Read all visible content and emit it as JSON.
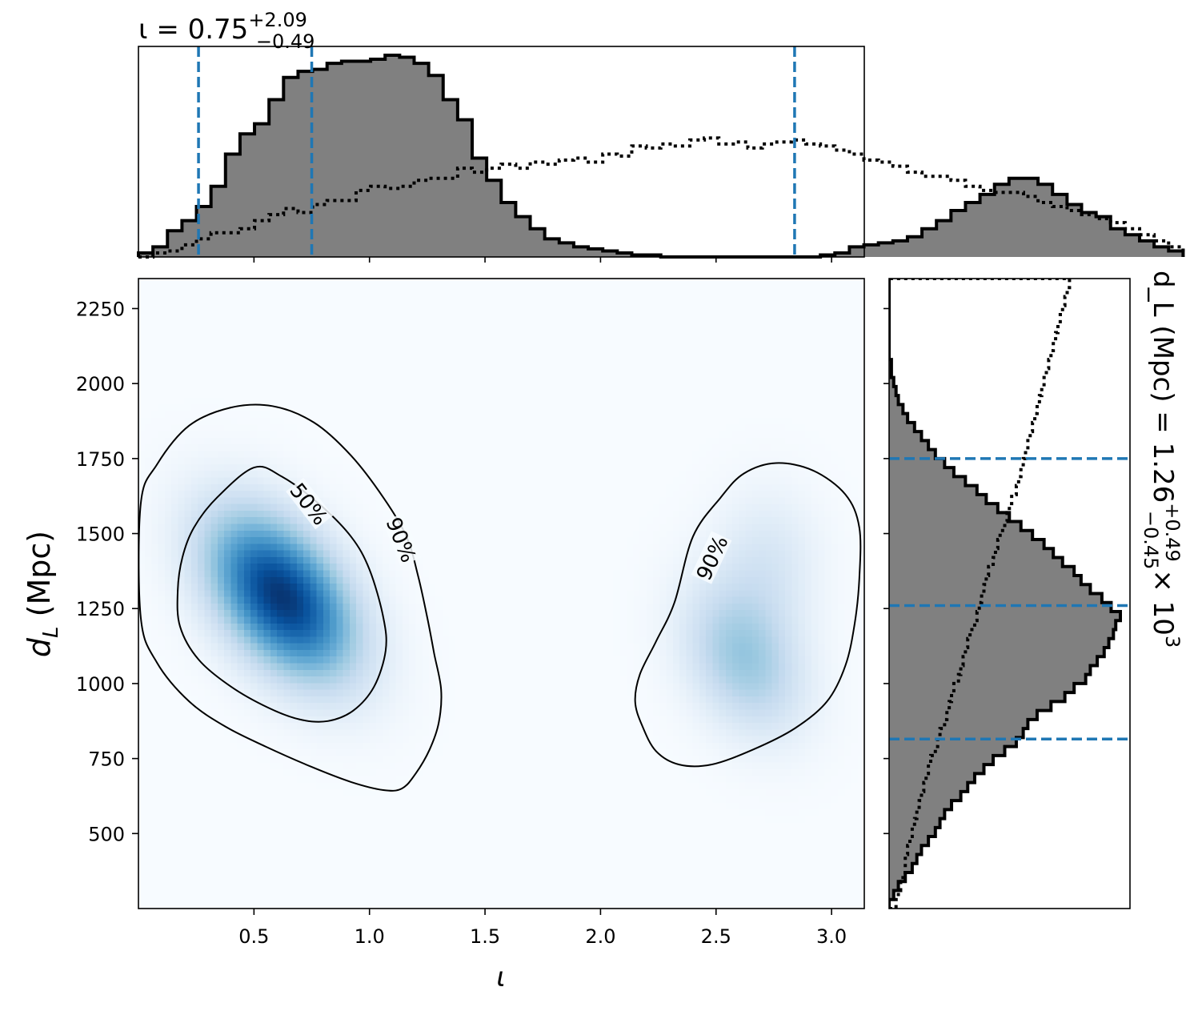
{
  "chart_data": {
    "type": "corner",
    "panels": {
      "top_hist": {
        "type": "histogram",
        "parameter": "ι",
        "title": {
          "prefix": "ι = 0.75",
          "sup": "+2.09",
          "sub": "−0.49"
        },
        "xlim": [
          0.0,
          3.1416
        ],
        "bin_width": 0.0628,
        "posterior": [
          0.02,
          0.05,
          0.13,
          0.18,
          0.25,
          0.35,
          0.51,
          0.61,
          0.66,
          0.78,
          0.89,
          0.92,
          0.93,
          0.96,
          0.97,
          0.97,
          0.98,
          1.0,
          0.99,
          0.96,
          0.9,
          0.78,
          0.68,
          0.49,
          0.38,
          0.27,
          0.2,
          0.14,
          0.09,
          0.07,
          0.05,
          0.04,
          0.03,
          0.02,
          0.01,
          0.01,
          0.0,
          0.0,
          0.0,
          0.0,
          0.0,
          0.0,
          0.0,
          0.0,
          0.0,
          0.0,
          0.0,
          0.01,
          0.02,
          0.05,
          0.06,
          0.07,
          0.08,
          0.1,
          0.14,
          0.18,
          0.23,
          0.27,
          0.31,
          0.36,
          0.39,
          0.39,
          0.36,
          0.31,
          0.26,
          0.22,
          0.2,
          0.14,
          0.11,
          0.08,
          0.05,
          0.03
        ],
        "prior": [
          0.0,
          0.02,
          0.03,
          0.06,
          0.09,
          0.12,
          0.12,
          0.14,
          0.18,
          0.21,
          0.24,
          0.22,
          0.26,
          0.28,
          0.28,
          0.33,
          0.35,
          0.34,
          0.35,
          0.38,
          0.39,
          0.39,
          0.44,
          0.42,
          0.44,
          0.46,
          0.44,
          0.47,
          0.46,
          0.48,
          0.49,
          0.47,
          0.51,
          0.5,
          0.55,
          0.54,
          0.56,
          0.55,
          0.58,
          0.59,
          0.56,
          0.57,
          0.54,
          0.56,
          0.57,
          0.58,
          0.56,
          0.55,
          0.53,
          0.51,
          0.48,
          0.47,
          0.45,
          0.42,
          0.4,
          0.4,
          0.38,
          0.35,
          0.33,
          0.32,
          0.32,
          0.3,
          0.27,
          0.25,
          0.23,
          0.21,
          0.19,
          0.17,
          0.14,
          0.11,
          0.08,
          0.05
        ],
        "interval_lines": [
          0.26,
          0.75,
          2.84
        ]
      },
      "main": {
        "type": "heatmap",
        "xlabel": "ι",
        "ylabel": "d_L (Mpc)",
        "xlim": [
          0.0,
          3.1416
        ],
        "ylim": [
          250,
          2350
        ],
        "xticks": [
          "0.5",
          "1.0",
          "1.5",
          "2.0",
          "2.5",
          "3.0"
        ],
        "xtick_values": [
          0.5,
          1.0,
          1.5,
          2.0,
          2.5,
          3.0
        ],
        "yticks": [
          "500",
          "750",
          "1000",
          "1250",
          "1500",
          "1750",
          "2000",
          "2250"
        ],
        "ytick_values": [
          500,
          750,
          1000,
          1250,
          1500,
          1750,
          2000,
          2250
        ],
        "colormap": [
          "#f7fbff",
          "#deebf7",
          "#c6dbef",
          "#9ecae1",
          "#6baed6",
          "#4292c6",
          "#2171b5",
          "#08519c",
          "#08306b"
        ],
        "density_peaks": [
          {
            "x": 0.62,
            "y": 1290,
            "sx": 0.22,
            "sy": 190,
            "rho": -0.45,
            "w": 1.0
          },
          {
            "x": 2.62,
            "y": 1080,
            "sx": 0.18,
            "sy": 170,
            "rho": -0.3,
            "w": 0.38
          },
          {
            "x": 2.72,
            "y": 1400,
            "sx": 0.16,
            "sy": 170,
            "rho": 0.0,
            "w": 0.16
          }
        ],
        "contours": [
          {
            "label": "50%",
            "points": [
              [
                0.24,
                1520
              ],
              [
                0.34,
                1620
              ],
              [
                0.5,
                1720
              ],
              [
                0.62,
                1690
              ],
              [
                0.78,
                1600
              ],
              [
                0.92,
                1490
              ],
              [
                1.0,
                1380
              ],
              [
                1.06,
                1220
              ],
              [
                1.07,
                1110
              ],
              [
                1.02,
                990
              ],
              [
                0.93,
                910
              ],
              [
                0.82,
                875
              ],
              [
                0.7,
                880
              ],
              [
                0.56,
                920
              ],
              [
                0.4,
                990
              ],
              [
                0.26,
                1080
              ],
              [
                0.18,
                1190
              ],
              [
                0.17,
                1310
              ],
              [
                0.19,
                1420
              ]
            ]
          },
          {
            "label": "90%",
            "points": [
              [
                0.01,
                1600
              ],
              [
                0.08,
                1730
              ],
              [
                0.22,
                1860
              ],
              [
                0.4,
                1920
              ],
              [
                0.58,
                1925
              ],
              [
                0.76,
                1870
              ],
              [
                0.92,
                1760
              ],
              [
                1.06,
                1620
              ],
              [
                1.16,
                1490
              ],
              [
                1.21,
                1360
              ],
              [
                1.25,
                1220
              ],
              [
                1.28,
                1100
              ],
              [
                1.31,
                980
              ],
              [
                1.3,
                870
              ],
              [
                1.26,
                780
              ],
              [
                1.2,
                700
              ],
              [
                1.14,
                650
              ],
              [
                1.06,
                645
              ],
              [
                0.92,
                672
              ],
              [
                0.75,
                722
              ],
              [
                0.55,
                790
              ],
              [
                0.38,
                855
              ],
              [
                0.22,
                940
              ],
              [
                0.08,
                1070
              ],
              [
                0.01,
                1220
              ]
            ]
          },
          {
            "label": "90%",
            "points": [
              [
                2.4,
                1490
              ],
              [
                2.52,
                1620
              ],
              [
                2.62,
                1700
              ],
              [
                2.76,
                1735
              ],
              [
                2.92,
                1710
              ],
              [
                3.06,
                1630
              ],
              [
                3.12,
                1520
              ],
              [
                3.12,
                1350
              ],
              [
                3.1,
                1200
              ],
              [
                3.06,
                1060
              ],
              [
                2.98,
                940
              ],
              [
                2.84,
                850
              ],
              [
                2.66,
                780
              ],
              [
                2.48,
                730
              ],
              [
                2.34,
                730
              ],
              [
                2.24,
                775
              ],
              [
                2.18,
                860
              ],
              [
                2.15,
                940
              ],
              [
                2.17,
                1030
              ],
              [
                2.24,
                1140
              ],
              [
                2.32,
                1270
              ]
            ]
          }
        ],
        "contour_labels": [
          {
            "text": "50%",
            "x": 0.74,
            "y": 1600,
            "angle": 52
          },
          {
            "text": "90%",
            "x": 1.14,
            "y": 1480,
            "angle": 68
          },
          {
            "text": "90%",
            "x": 2.48,
            "y": 1420,
            "angle": -65
          }
        ]
      },
      "right_hist": {
        "type": "histogram",
        "orientation": "horizontal",
        "parameter": "d_L",
        "title": {
          "prefix": "d_L (Mpc) = 1.26",
          "sup": "+0.49",
          "sub": "−0.45",
          "suffix": "× 10",
          "exp": "3"
        },
        "ylim": [
          250,
          2350
        ],
        "bin_edges_start": 250,
        "bin_width": 30,
        "posterior": [
          0.0,
          0.02,
          0.04,
          0.07,
          0.1,
          0.12,
          0.14,
          0.17,
          0.2,
          0.22,
          0.24,
          0.27,
          0.31,
          0.34,
          0.37,
          0.41,
          0.45,
          0.5,
          0.55,
          0.58,
          0.6,
          0.64,
          0.7,
          0.76,
          0.8,
          0.85,
          0.87,
          0.9,
          0.93,
          0.95,
          0.97,
          0.98,
          1.0,
          0.96,
          0.92,
          0.87,
          0.83,
          0.8,
          0.75,
          0.71,
          0.67,
          0.62,
          0.57,
          0.52,
          0.47,
          0.42,
          0.38,
          0.33,
          0.28,
          0.24,
          0.2,
          0.17,
          0.14,
          0.11,
          0.08,
          0.06,
          0.04,
          0.03,
          0.02,
          0.01,
          0.01,
          0.0,
          0.0,
          0.0,
          0.0,
          0.0,
          0.0,
          0.0,
          0.0,
          0.0
        ],
        "prior": [
          0.03,
          0.04,
          0.05,
          0.06,
          0.07,
          0.07,
          0.08,
          0.09,
          0.1,
          0.11,
          0.12,
          0.13,
          0.14,
          0.15,
          0.16,
          0.17,
          0.18,
          0.2,
          0.21,
          0.22,
          0.24,
          0.25,
          0.26,
          0.27,
          0.28,
          0.3,
          0.31,
          0.32,
          0.33,
          0.34,
          0.35,
          0.37,
          0.38,
          0.39,
          0.4,
          0.41,
          0.42,
          0.43,
          0.45,
          0.46,
          0.47,
          0.48,
          0.5,
          0.51,
          0.52,
          0.53,
          0.55,
          0.56,
          0.57,
          0.58,
          0.59,
          0.6,
          0.61,
          0.62,
          0.63,
          0.64,
          0.65,
          0.66,
          0.67,
          0.68,
          0.69,
          0.7,
          0.71,
          0.72,
          0.73,
          0.74,
          0.75,
          0.76,
          0.77,
          0.78
        ],
        "interval_lines": [
          815,
          1260,
          1750
        ]
      }
    }
  },
  "colors": {
    "posterior_fill": "#808080",
    "posterior_edge": "#000000",
    "prior_line": "#000000",
    "interval_line": "#1f77b4",
    "contour_line": "#000000"
  }
}
